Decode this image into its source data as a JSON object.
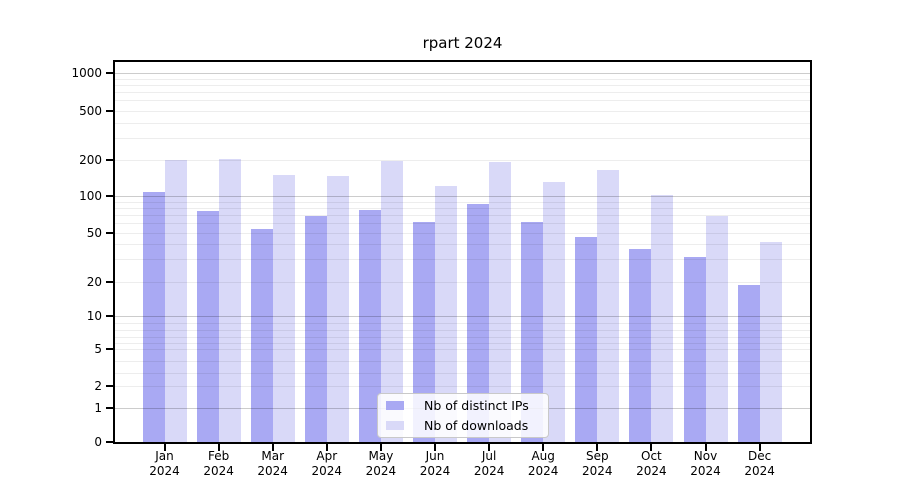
{
  "chart_data": {
    "type": "bar",
    "title": "rpart 2024",
    "categories": [
      "Jan 2024",
      "Feb 2024",
      "Mar 2024",
      "Apr 2024",
      "May 2024",
      "Jun 2024",
      "Jul 2024",
      "Aug 2024",
      "Sep 2024",
      "Oct 2024",
      "Nov 2024",
      "Dec 2024"
    ],
    "series": [
      {
        "name": "Nb of distinct IPs",
        "values": [
          106,
          74,
          52,
          67,
          75,
          60,
          84,
          60,
          45,
          36,
          31,
          18
        ]
      },
      {
        "name": "Nb of downloads",
        "values": [
          196,
          200,
          145,
          143,
          190,
          118,
          188,
          129,
          160,
          100,
          67,
          41
        ]
      }
    ],
    "xlabel": "",
    "ylabel": "",
    "yscale": "log",
    "y_tick_labels": [
      "1000",
      "500",
      "200",
      "100",
      "50",
      "20",
      "10",
      "5",
      "2",
      "1",
      "0"
    ],
    "ylim": [
      0,
      1250
    ],
    "grid": true,
    "legend_position": "lower center"
  },
  "colors": {
    "distinct_ips_bar": "#a9a9f3",
    "downloads_bar": "#d9d9f8",
    "major_grid": "#cccccc",
    "minor_grid": "#ececec",
    "axis": "#000000"
  }
}
